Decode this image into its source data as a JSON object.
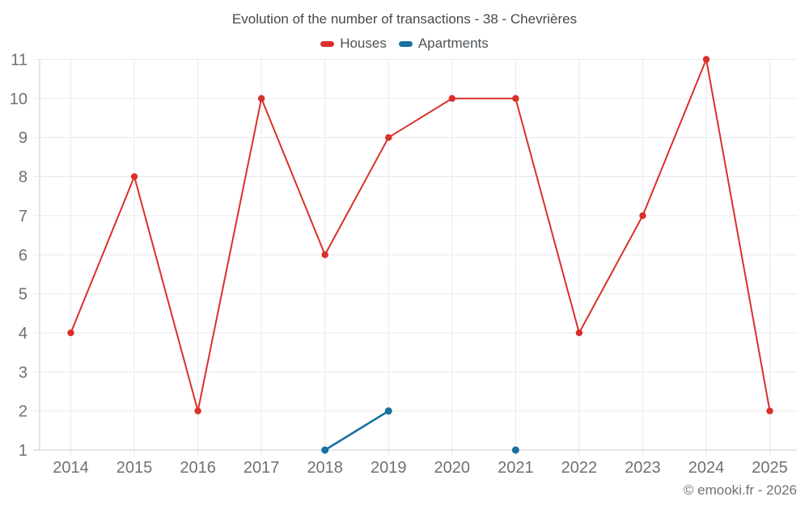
{
  "title": "Evolution of the number of transactions - 38 - Chevrières",
  "copyright": "© emooki.fr - 2026",
  "colors": {
    "background": "#ffffff",
    "grid": "#e9e9e9",
    "axis": "#c8cbcd",
    "tick_label": "#6d7174",
    "title": "#45494d",
    "legend_label": "#4e5357",
    "copyright": "#6f7477"
  },
  "chart_data": {
    "type": "line",
    "title": "Evolution of the number of transactions - 38 - Chevrières",
    "xlabel": "",
    "ylabel": "",
    "x": [
      2014,
      2015,
      2016,
      2017,
      2018,
      2019,
      2020,
      2021,
      2022,
      2023,
      2024,
      2025
    ],
    "yticks": [
      1,
      2,
      3,
      4,
      5,
      6,
      7,
      8,
      9,
      10,
      11
    ],
    "ylim": [
      1,
      11
    ],
    "grid": true,
    "legend_position": "top",
    "series": [
      {
        "name": "Houses",
        "color": "#d9302a",
        "line_width": 2,
        "marker_radius": 4.2,
        "values": [
          4,
          8,
          2,
          10,
          6,
          9,
          10,
          10,
          4,
          7,
          11,
          2
        ]
      },
      {
        "name": "Apartments",
        "color": "#17709f",
        "line_width": 2.5,
        "marker_radius": 4.5,
        "values": [
          null,
          null,
          null,
          null,
          1,
          2,
          null,
          1,
          null,
          null,
          null,
          null
        ]
      }
    ]
  }
}
